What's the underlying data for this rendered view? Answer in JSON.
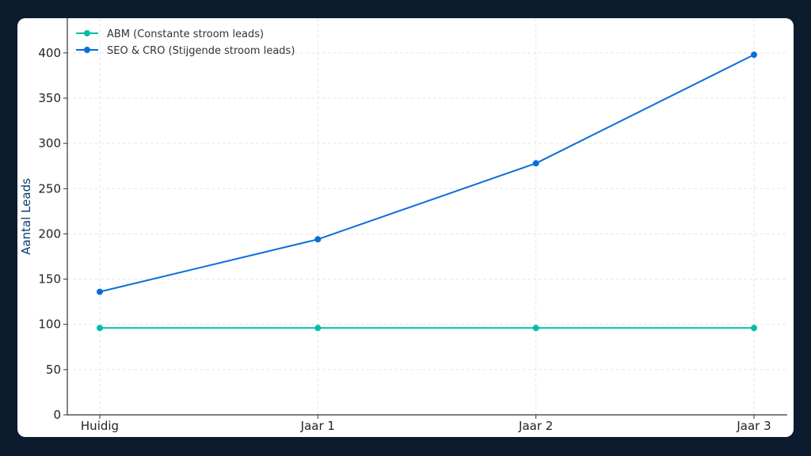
{
  "chart_data": {
    "type": "line",
    "categories": [
      "Huidig",
      "Jaar 1",
      "Jaar 2",
      "Jaar 3"
    ],
    "series": [
      {
        "name": "ABM (Constante stroom leads)",
        "values": [
          96,
          96,
          96,
          96
        ],
        "color": "#00bfa5"
      },
      {
        "name": "SEO & CRO (Stijgende stroom leads)",
        "values": [
          136,
          194,
          278,
          398
        ],
        "color": "#0a6fd6"
      }
    ],
    "ylabel": "Aantal Leads",
    "ylabel_color": "#0d3b6e",
    "ylim": [
      0,
      420
    ],
    "yticks": [
      "0",
      "50",
      "100",
      "150",
      "200",
      "250",
      "300",
      "350",
      "400"
    ],
    "grid": true,
    "legend_position": "top-left"
  }
}
